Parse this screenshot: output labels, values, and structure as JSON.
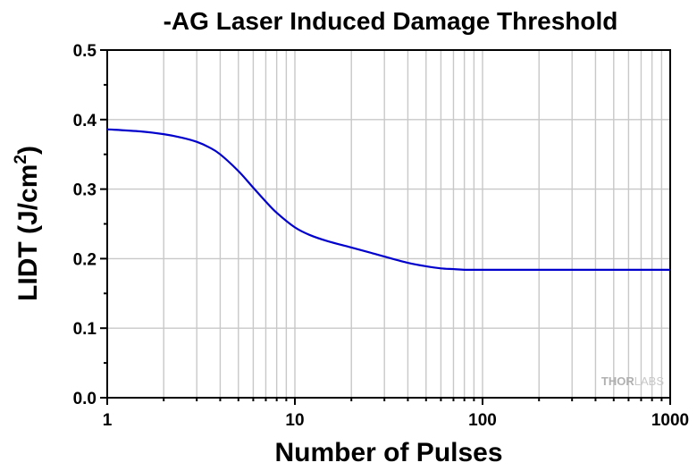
{
  "chart_data": {
    "type": "line",
    "title": "-AG Laser Induced Damage Threshold",
    "xlabel": "Number of Pulses",
    "ylabel_main": "LIDT (J/cm",
    "ylabel_sup": "2",
    "ylabel_close": ")",
    "x_scale": "log",
    "xlim": [
      1,
      1000
    ],
    "ylim": [
      0,
      0.5
    ],
    "x_ticks": [
      1,
      10,
      100,
      1000
    ],
    "x_tick_labels": [
      "1",
      "10",
      "100",
      "1000"
    ],
    "y_ticks": [
      0,
      0.1,
      0.2,
      0.3,
      0.4,
      0.5
    ],
    "y_tick_labels": [
      "0.0",
      "0.1",
      "0.2",
      "0.3",
      "0.4",
      "0.5"
    ],
    "grid": true,
    "series": [
      {
        "color": "#0000cc",
        "x": [
          1,
          1.5,
          2,
          2.5,
          3,
          3.5,
          4,
          5,
          6,
          7,
          8,
          10,
          12,
          15,
          20,
          25,
          30,
          40,
          50,
          60,
          70,
          80,
          100,
          200,
          500,
          1000
        ],
        "y": [
          0.386,
          0.383,
          0.379,
          0.374,
          0.368,
          0.36,
          0.35,
          0.326,
          0.302,
          0.282,
          0.266,
          0.245,
          0.234,
          0.225,
          0.216,
          0.209,
          0.203,
          0.194,
          0.189,
          0.186,
          0.185,
          0.184,
          0.184,
          0.184,
          0.184,
          0.184
        ]
      }
    ]
  },
  "watermark": {
    "part1": "THOR",
    "part2": "LABS"
  }
}
